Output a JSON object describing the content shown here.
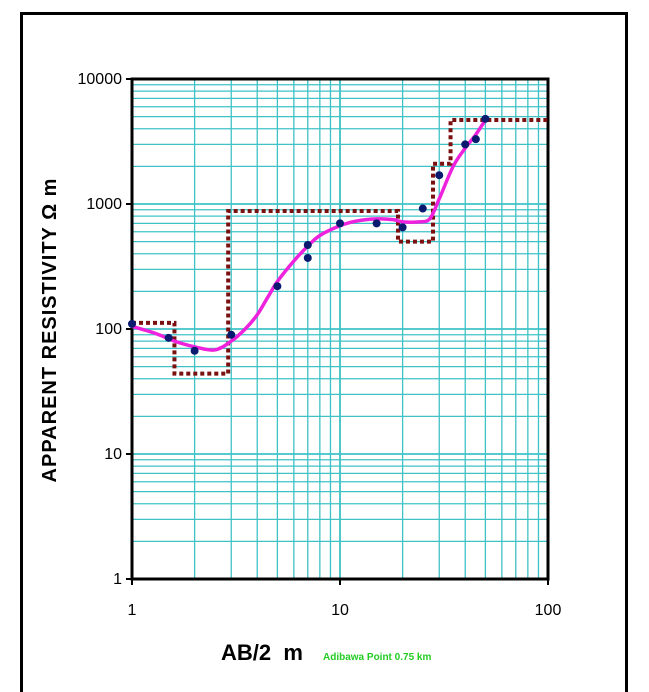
{
  "chart_data": {
    "type": "scatter",
    "x_scale": "log",
    "y_scale": "log",
    "xlim": [
      1,
      100
    ],
    "ylim": [
      1,
      10000
    ],
    "x_ticks": [
      "1",
      "10",
      "100"
    ],
    "y_ticks": [
      "1",
      "10",
      "100",
      "1000",
      "10000"
    ],
    "xlabel": "AB/2  m",
    "ylabel": "APPARENT RESISTIVITY  Ω m",
    "annotation": "Adibawa Point 0.75 km",
    "grid": true,
    "colors": {
      "grid": "#3fc2c6",
      "points": "#0a1a6e",
      "curve": "#ee22dd",
      "model": "#7a1010"
    },
    "series": [
      {
        "kind": "observed",
        "x": [
          1.0,
          1.5,
          2.0,
          3.0,
          5.0,
          7.0,
          7.0,
          10.0,
          15.0,
          20.0,
          25.0,
          30.0,
          40.0,
          45.0,
          50.0
        ],
        "y": [
          110,
          85,
          67,
          90,
          220,
          470,
          370,
          700,
          700,
          650,
          920,
          1700,
          3000,
          3300,
          4800
        ]
      },
      {
        "kind": "fitted_curve",
        "x": [
          1.0,
          1.3,
          1.6,
          2.0,
          2.5,
          3.0,
          3.5,
          4.0,
          4.5,
          5.0,
          6.0,
          7.0,
          8.0,
          10.0,
          12.0,
          15.0,
          18.0,
          20.0,
          24.0,
          27.0,
          30.0,
          35.0,
          40.0,
          45.0,
          50.0
        ],
        "y": [
          105,
          92,
          80,
          72,
          68,
          80,
          100,
          130,
          180,
          240,
          350,
          460,
          560,
          670,
          730,
          760,
          750,
          720,
          720,
          760,
          1100,
          2000,
          2800,
          3600,
          4700
        ]
      },
      {
        "kind": "layer_model",
        "x": [
          1.0,
          1.6,
          1.6,
          2.9,
          2.9,
          19.0,
          19.0,
          28.0,
          28.0,
          34.0,
          34.0,
          100.0
        ],
        "y": [
          112,
          112,
          44,
          44,
          880,
          880,
          500,
          500,
          2100,
          2100,
          4700,
          4700
        ]
      }
    ]
  }
}
